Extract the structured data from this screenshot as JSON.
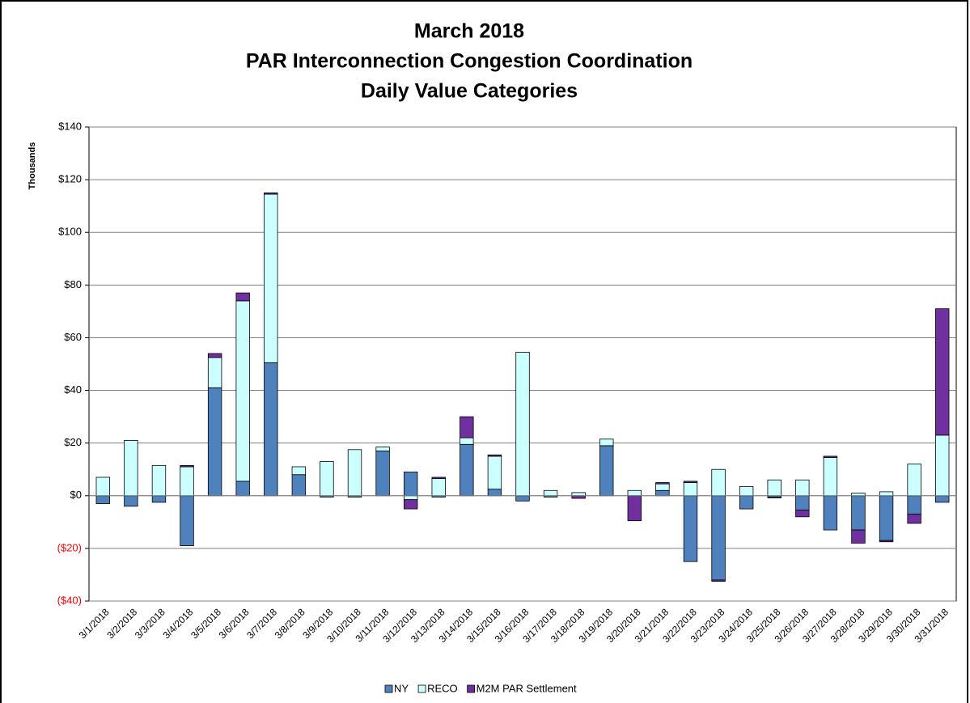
{
  "chart_data": {
    "type": "stacked_bar",
    "title": [
      "March 2018",
      "PAR Interconnection Congestion Coordination",
      "Daily Value Categories"
    ],
    "y_label": "Thousands",
    "categories": [
      "3/1/2018",
      "3/2/2018",
      "3/3/2018",
      "3/4/2018",
      "3/5/2018",
      "3/6/2018",
      "3/7/2018",
      "3/8/2018",
      "3/9/2018",
      "3/10/2018",
      "3/11/2018",
      "3/12/2018",
      "3/13/2018",
      "3/14/2018",
      "3/15/2018",
      "3/16/2018",
      "3/17/2018",
      "3/18/2018",
      "3/19/2018",
      "3/20/2018",
      "3/21/2018",
      "3/22/2018",
      "3/23/2018",
      "3/24/2018",
      "3/25/2018",
      "3/26/2018",
      "3/27/2018",
      "3/28/2018",
      "3/29/2018",
      "3/30/2018",
      "3/31/2018"
    ],
    "series": [
      {
        "name": "NY",
        "color": "#4f81bd",
        "values": [
          -3,
          -4,
          -2.5,
          -19,
          41,
          5.5,
          50.5,
          8,
          -0.5,
          -0.5,
          17,
          9,
          -0.5,
          19.5,
          2.5,
          -2,
          -0.5,
          0,
          19,
          0,
          2,
          -25,
          -32,
          -5,
          -0.5,
          -5.5,
          -13,
          -13,
          -17,
          -7,
          -2.5
        ]
      },
      {
        "name": "RECO",
        "color": "#ccffff",
        "values": [
          7,
          21,
          11.5,
          11,
          11.5,
          68.5,
          64,
          3,
          13,
          17.5,
          1.5,
          -1.5,
          6.5,
          2.5,
          12.5,
          54.5,
          2,
          1.2,
          2.5,
          2,
          2.5,
          5,
          10,
          3.5,
          6,
          6,
          14.5,
          1,
          1.5,
          12,
          23
        ]
      },
      {
        "name": "M2M PAR Settlement",
        "color": "#7030a0",
        "values": [
          0,
          0,
          0,
          0.5,
          1.5,
          3,
          0.5,
          0,
          0,
          0,
          0,
          -3.5,
          0.5,
          8,
          0.5,
          0,
          0,
          -1,
          0,
          -9.5,
          0.5,
          0.5,
          -0.5,
          0,
          -0.3,
          -2.5,
          0.5,
          -5,
          -0.5,
          -3.5,
          48
        ]
      }
    ],
    "ylim": [
      -40,
      140
    ],
    "yticks": [
      {
        "value": -40,
        "label": "($40)"
      },
      {
        "value": -20,
        "label": "($20)"
      },
      {
        "value": 0,
        "label": "$0"
      },
      {
        "value": 20,
        "label": "$20"
      },
      {
        "value": 40,
        "label": "$40"
      },
      {
        "value": 60,
        "label": "$60"
      },
      {
        "value": 80,
        "label": "$80"
      },
      {
        "value": 100,
        "label": "$100"
      },
      {
        "value": 120,
        "label": "$120"
      },
      {
        "value": 140,
        "label": "$140"
      }
    ],
    "grid": true,
    "negative_label_color": "#ff0000",
    "legend": "bottom"
  }
}
